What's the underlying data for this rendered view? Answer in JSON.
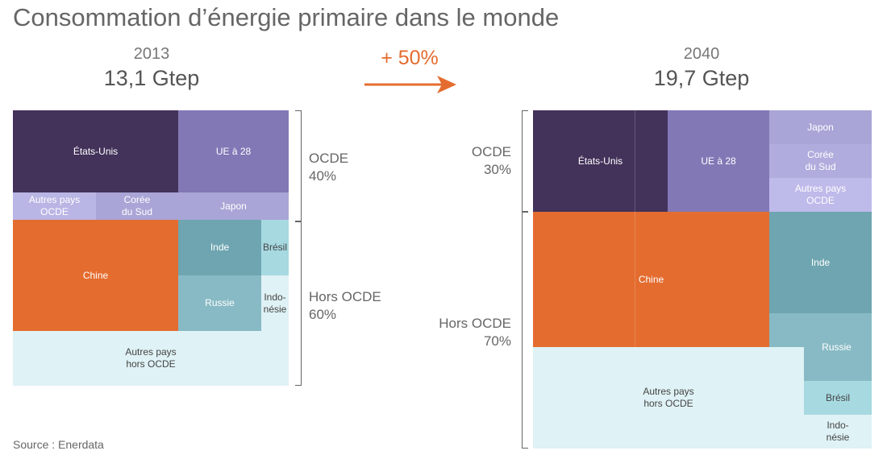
{
  "title": "Consommation d’énergie primaire dans le monde",
  "growth": "+ 50%",
  "source": "Source : Enerdata",
  "colors": {
    "usa": "#43325a",
    "eu": "#8278b6",
    "light_purple": "#a9a5d6",
    "lighter_purple": "#b9b5e4",
    "china": "#e46c2f",
    "teal_dark": "#6ea5b0",
    "teal_mid": "#87bac4",
    "teal_light": "#a7d9e1",
    "teal_pale": "#dff2f5",
    "arrow": "#e46c2f"
  },
  "chart_data": [
    {
      "type": "treemap",
      "year": "2013",
      "total_label": "13,1 Gtep",
      "total_value": 13.1,
      "unit": "Gtep",
      "groups": [
        {
          "label": "OCDE\n40%",
          "share_pct": 40
        },
        {
          "label": "Hors OCDE\n60%",
          "share_pct": 60
        }
      ],
      "cells": [
        {
          "key": "etats-unis",
          "label": "États-Unis",
          "group": "OCDE"
        },
        {
          "key": "ue-28",
          "label": "UE à 28",
          "group": "OCDE"
        },
        {
          "key": "autres-ocde",
          "label": "Autres pays\nOCDE",
          "group": "OCDE"
        },
        {
          "key": "coree",
          "label": "Corée\ndu Sud",
          "group": "OCDE"
        },
        {
          "key": "japon",
          "label": "Japon",
          "group": "OCDE"
        },
        {
          "key": "chine",
          "label": "Chine",
          "group": "Hors OCDE"
        },
        {
          "key": "inde",
          "label": "Inde",
          "group": "Hors OCDE"
        },
        {
          "key": "bresil",
          "label": "Brésil",
          "group": "Hors OCDE"
        },
        {
          "key": "russie",
          "label": "Russie",
          "group": "Hors OCDE"
        },
        {
          "key": "indonesie",
          "label": "Indo-\nnésie",
          "group": "Hors OCDE"
        },
        {
          "key": "autres-hors-ocde",
          "label": "Autres pays\nhors OCDE",
          "group": "Hors OCDE"
        }
      ]
    },
    {
      "type": "treemap",
      "year": "2040",
      "total_label": "19,7 Gtep",
      "total_value": 19.7,
      "unit": "Gtep",
      "groups": [
        {
          "label": "OCDE\n30%",
          "share_pct": 30
        },
        {
          "label": "Hors OCDE\n70%",
          "share_pct": 70
        }
      ],
      "cells": [
        {
          "key": "etats-unis",
          "label": "États-Unis",
          "group": "OCDE"
        },
        {
          "key": "ue-28",
          "label": "UE à 28",
          "group": "OCDE"
        },
        {
          "key": "japon",
          "label": "Japon",
          "group": "OCDE"
        },
        {
          "key": "coree",
          "label": "Corée\ndu Sud",
          "group": "OCDE"
        },
        {
          "key": "autres-ocde",
          "label": "Autres pays\nOCDE",
          "group": "OCDE"
        },
        {
          "key": "chine",
          "label": "Chine",
          "group": "Hors OCDE"
        },
        {
          "key": "inde",
          "label": "Inde",
          "group": "Hors OCDE"
        },
        {
          "key": "russie",
          "label": "Russie",
          "group": "Hors OCDE"
        },
        {
          "key": "autres-hors-ocde",
          "label": "Autres pays\nhors OCDE",
          "group": "Hors OCDE"
        },
        {
          "key": "bresil",
          "label": "Brésil",
          "group": "Hors OCDE"
        },
        {
          "key": "indonesie",
          "label": "Indo-\nnésie",
          "group": "Hors OCDE"
        }
      ]
    }
  ]
}
